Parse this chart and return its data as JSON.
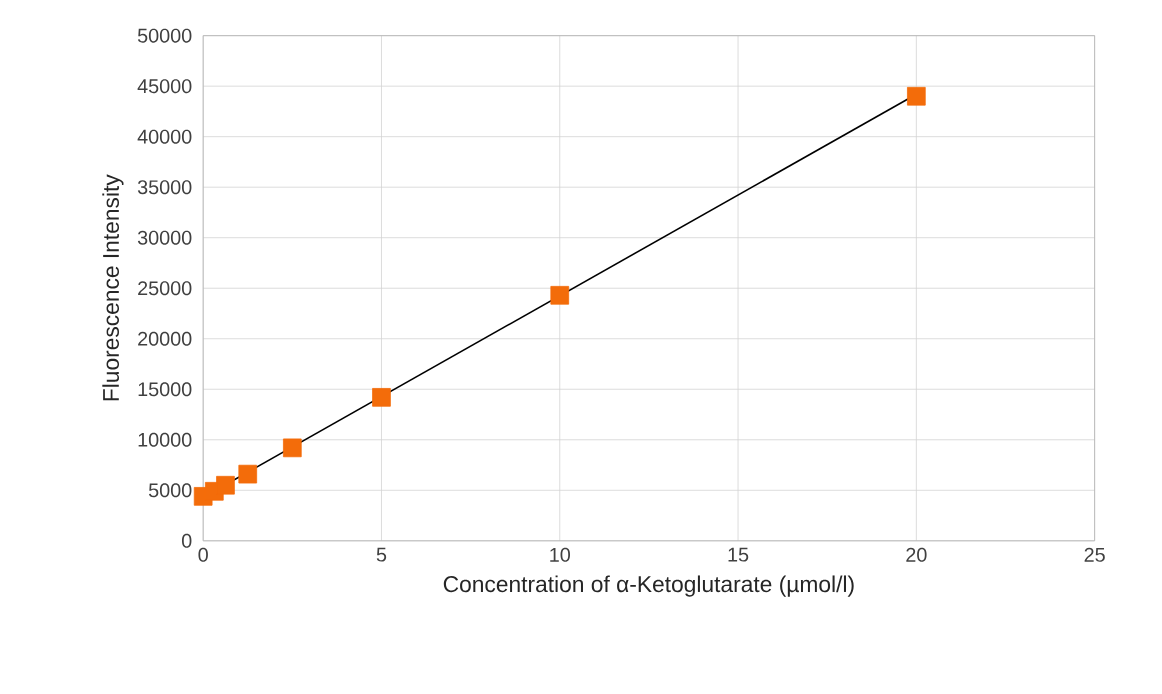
{
  "chart_data": {
    "type": "scatter",
    "xlabel": "Concentration of α-Ketoglutarate (µmol/l)",
    "ylabel": "Fluorescence Intensity",
    "series": [
      {
        "color": "#f36c0a",
        "marker": "square",
        "x": [
          0,
          0.3125,
          0.625,
          1.25,
          2.5,
          5,
          10,
          20
        ],
        "values": [
          4400,
          4900,
          5500,
          6600,
          9200,
          14200,
          24300,
          44000
        ]
      },
      {
        "type": "line",
        "color": "#000000",
        "marker": "none",
        "x": [
          0,
          20
        ],
        "values": [
          4300,
          44200
        ]
      }
    ],
    "xlim": [
      0,
      25
    ],
    "ylim": [
      0,
      50000
    ],
    "xticks": [
      0,
      5,
      10,
      15,
      20,
      25
    ],
    "yticks": [
      0,
      5000,
      10000,
      15000,
      20000,
      25000,
      30000,
      35000,
      40000,
      45000,
      50000
    ],
    "grid": true
  }
}
